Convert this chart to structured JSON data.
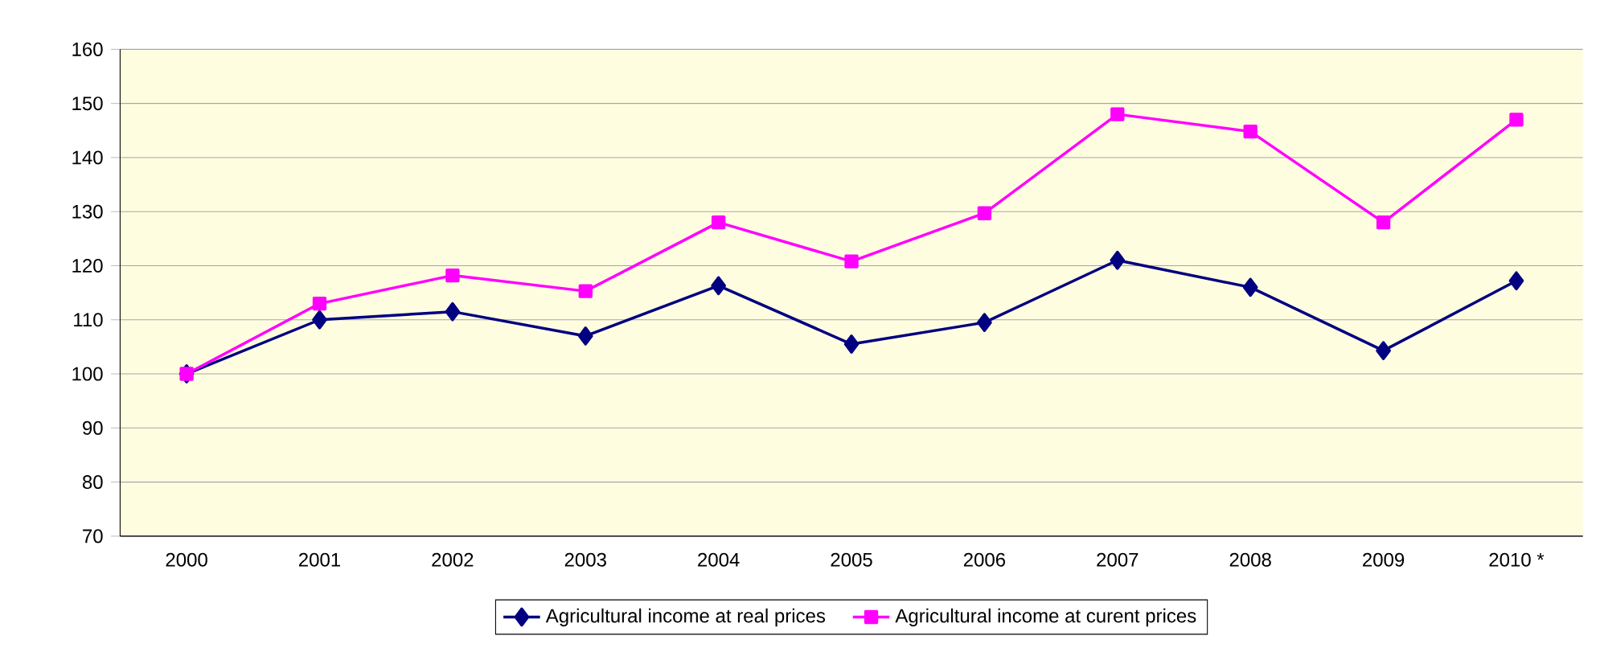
{
  "chart_data": {
    "type": "line",
    "categories": [
      "2000",
      "2001",
      "2002",
      "2003",
      "2004",
      "2005",
      "2006",
      "2007",
      "2008",
      "2009",
      "2010 *"
    ],
    "series": [
      {
        "name": "Agricultural income at real prices",
        "color": "#000080",
        "marker": "diamond",
        "values": [
          100,
          110,
          111.5,
          107,
          116.3,
          105.5,
          109.5,
          121,
          116,
          104.3,
          117.2
        ]
      },
      {
        "name": "Agricultural income at curent prices",
        "color": "#ff00ff",
        "marker": "square",
        "values": [
          100,
          113,
          118.2,
          115.3,
          128,
          120.8,
          129.7,
          148,
          144.8,
          128,
          147
        ]
      }
    ],
    "ylim": [
      70,
      160
    ],
    "yticks": [
      70,
      80,
      90,
      100,
      110,
      120,
      130,
      140,
      150,
      160
    ],
    "grid": "y",
    "legend": "bottom",
    "line_style": "solid"
  }
}
